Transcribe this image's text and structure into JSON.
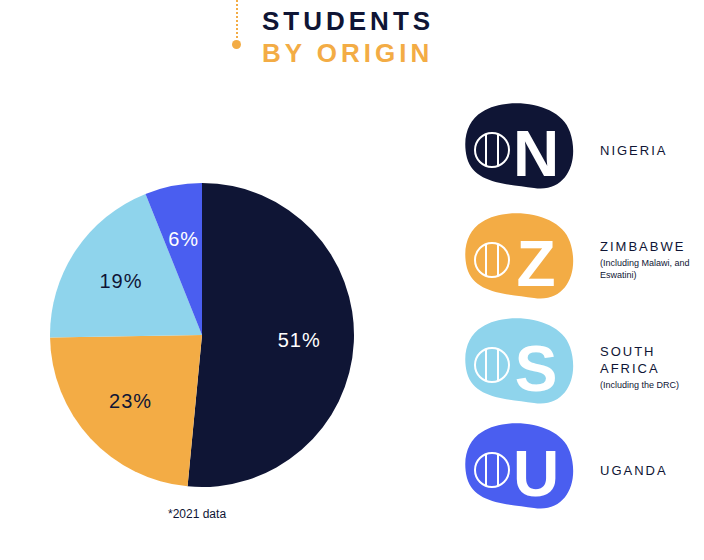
{
  "chart_data": {
    "type": "pie",
    "title": "STUDENTS",
    "subtitle": "BY ORIGIN",
    "categories": [
      "NIGERIA",
      "ZIMBABWE",
      "SOUTH AFRICA",
      "UGANDA"
    ],
    "category_notes": [
      null,
      "(Including Malawi, and Eswatini)",
      "(Including the DRC)",
      null
    ],
    "letters": [
      "N",
      "Z",
      "S",
      "U"
    ],
    "values": [
      51,
      23,
      19,
      6
    ],
    "value_labels": [
      "51%",
      "23%",
      "19%",
      "6%"
    ],
    "colors": [
      "#0f1535",
      "#f3ac45",
      "#8fd4ec",
      "#4a5ef0"
    ],
    "data_labels": true,
    "legend": "right",
    "footnote": "*2021 data"
  }
}
